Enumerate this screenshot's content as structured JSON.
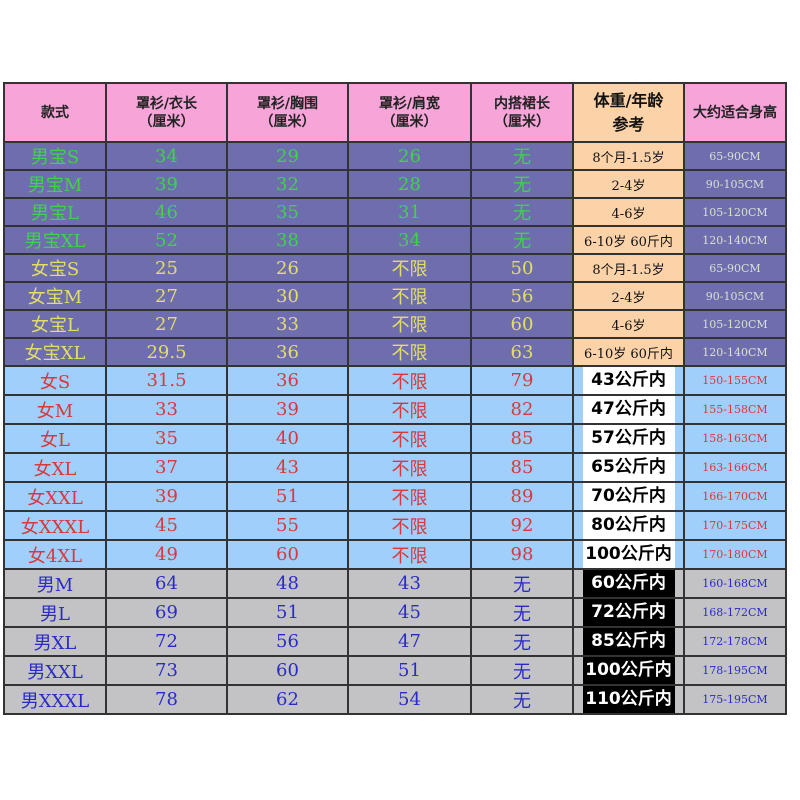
{
  "header": [
    "款式",
    "罩衫/衣长\n（厘米）",
    "罩衫/胸围\n（厘米）",
    "罩衫/肩宽\n（厘米）",
    "内搭裙长\n（厘米）",
    "体重/年龄\n参考",
    "大约适合身高"
  ],
  "colors": {
    "header_pink": "#f7a4d8",
    "weight_orange": "#fcd3a8",
    "kids_bg": "#6e6eae",
    "boys_text": "#3fd24a",
    "girls_text": "#e4de66",
    "women_bg": "#9fcffa",
    "women_text": "#d8383c",
    "men_bg": "#c3c3c5",
    "men_text": "#2a2ac8"
  },
  "rows": [
    {
      "group": "kb",
      "cells": [
        "男宝S",
        "34",
        "29",
        "26",
        "无",
        "8个月-1.5岁",
        "65-90CM"
      ]
    },
    {
      "group": "kb",
      "cells": [
        "男宝M",
        "39",
        "32",
        "28",
        "无",
        "2-4岁",
        "90-105CM"
      ]
    },
    {
      "group": "kb",
      "cells": [
        "男宝L",
        "46",
        "35",
        "31",
        "无",
        "4-6岁",
        "105-120CM"
      ]
    },
    {
      "group": "kb",
      "cells": [
        "男宝XL",
        "52",
        "38",
        "34",
        "无",
        "6-10岁  60斤内",
        "120-140CM"
      ]
    },
    {
      "group": "kg",
      "cells": [
        "女宝S",
        "25",
        "26",
        "不限",
        "50",
        "8个月-1.5岁",
        "65-90CM"
      ]
    },
    {
      "group": "kg",
      "cells": [
        "女宝M",
        "27",
        "30",
        "不限",
        "56",
        "2-4岁",
        "90-105CM"
      ]
    },
    {
      "group": "kg",
      "cells": [
        "女宝L",
        "27",
        "33",
        "不限",
        "60",
        "4-6岁",
        "105-120CM"
      ]
    },
    {
      "group": "kg",
      "cells": [
        "女宝XL",
        "29.5",
        "36",
        "不限",
        "63",
        "6-10岁  60斤内",
        "120-140CM"
      ]
    },
    {
      "group": "w",
      "cells": [
        "女S",
        "31.5",
        "36",
        "不限",
        "79",
        "43公斤内",
        "150-155CM"
      ]
    },
    {
      "group": "w",
      "cells": [
        "女M",
        "33",
        "39",
        "不限",
        "82",
        "47公斤内",
        "155-158CM"
      ]
    },
    {
      "group": "w",
      "cells": [
        "女L",
        "35",
        "40",
        "不限",
        "85",
        "57公斤内",
        "158-163CM"
      ]
    },
    {
      "group": "w",
      "cells": [
        "女XL",
        "37",
        "43",
        "不限",
        "85",
        "65公斤内",
        "163-166CM"
      ]
    },
    {
      "group": "w",
      "cells": [
        "女XXL",
        "39",
        "51",
        "不限",
        "89",
        "70公斤内",
        "166-170CM"
      ]
    },
    {
      "group": "w",
      "cells": [
        "女XXXL",
        "45",
        "55",
        "不限",
        "92",
        "80公斤内",
        "170-175CM"
      ]
    },
    {
      "group": "w",
      "cells": [
        "女4XL",
        "49",
        "60",
        "不限",
        "98",
        "100公斤内",
        "170-180CM"
      ]
    },
    {
      "group": "m",
      "cells": [
        "男M",
        "64",
        "48",
        "43",
        "无",
        "60公斤内",
        "160-168CM"
      ]
    },
    {
      "group": "m",
      "cells": [
        "男L",
        "69",
        "51",
        "45",
        "无",
        "72公斤内",
        "168-172CM"
      ]
    },
    {
      "group": "m",
      "cells": [
        "男XL",
        "72",
        "56",
        "47",
        "无",
        "85公斤内",
        "172-178CM"
      ]
    },
    {
      "group": "m",
      "cells": [
        "男XXL",
        "73",
        "60",
        "51",
        "无",
        "100公斤内",
        "178-195CM"
      ]
    },
    {
      "group": "m",
      "cells": [
        "男XXXL",
        "78",
        "62",
        "54",
        "无",
        "110公斤内",
        "175-195CM"
      ]
    }
  ]
}
